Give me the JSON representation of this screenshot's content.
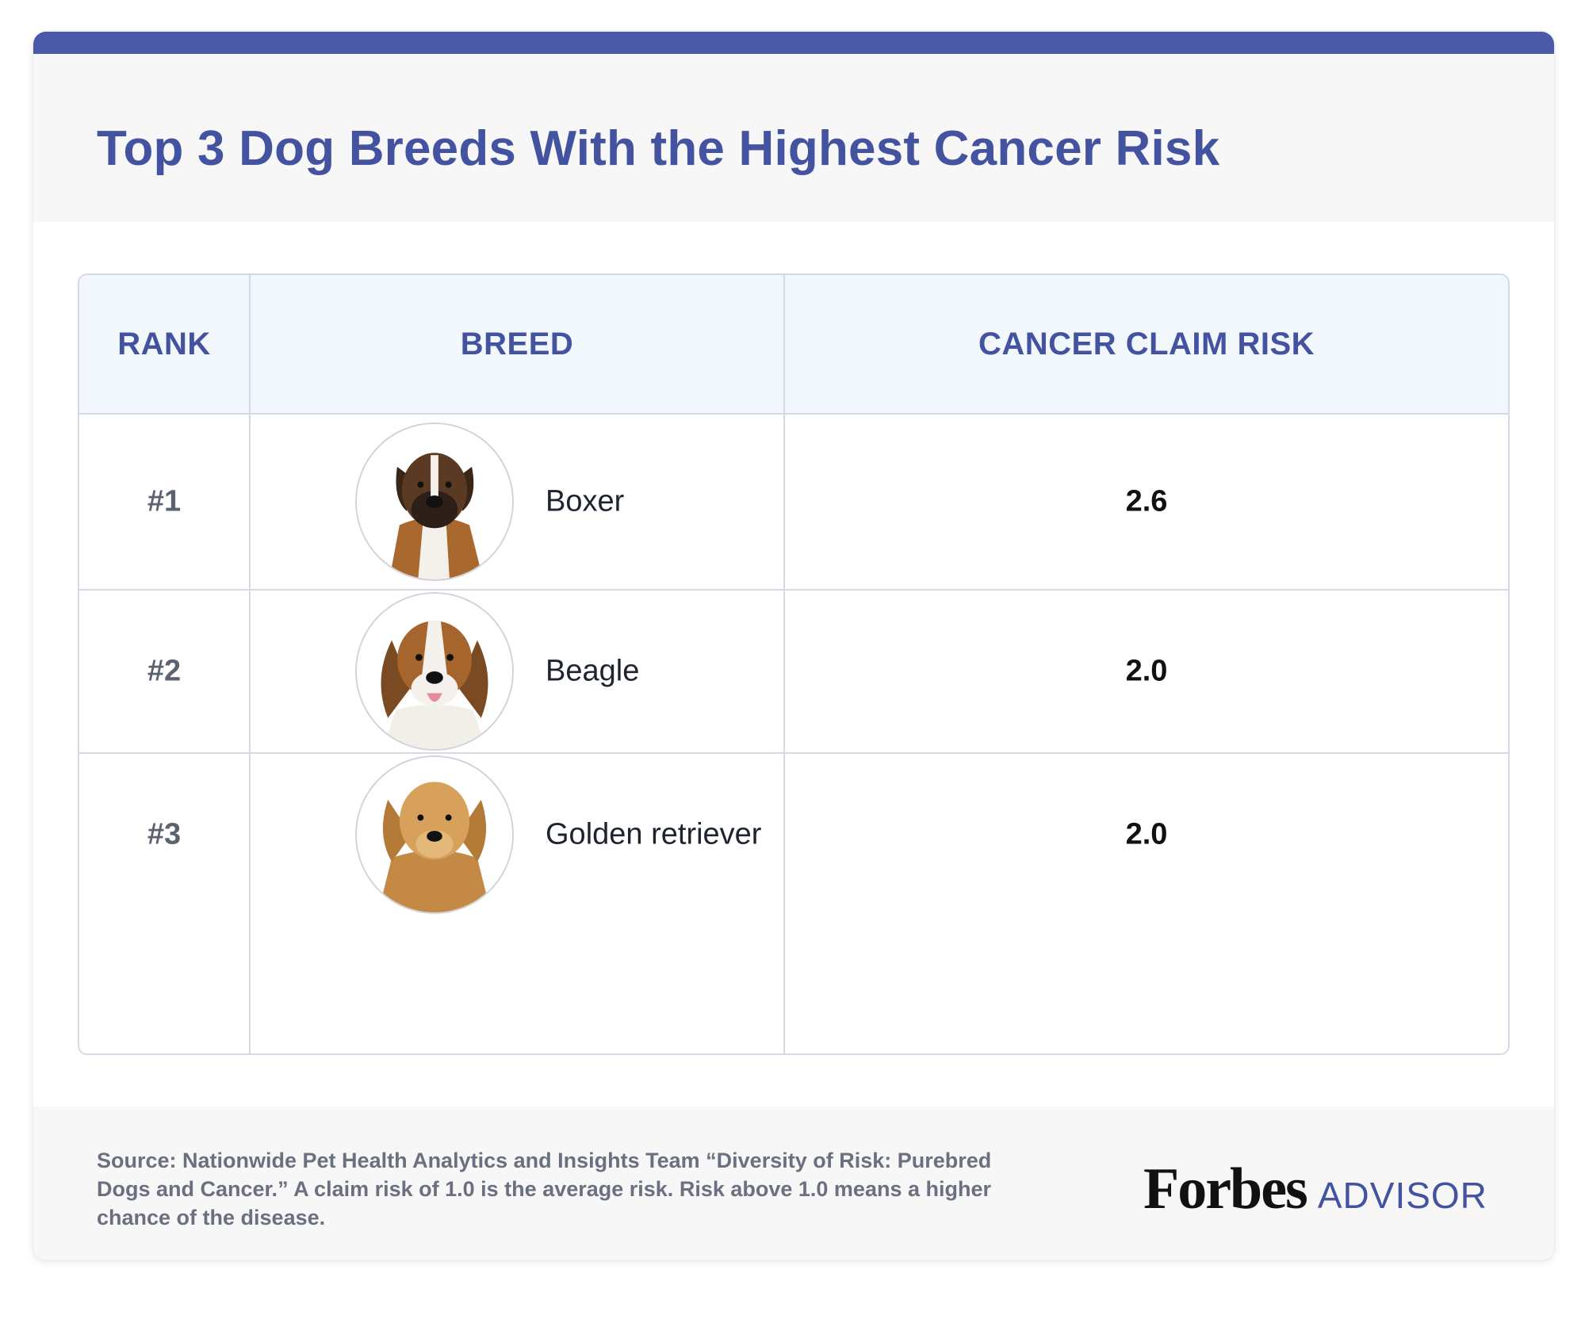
{
  "title": "Top 3 Dog Breeds With the Highest Cancer Risk",
  "colors": {
    "accent": "#4a5aa8",
    "title": "#4453a0",
    "header_bg": "#f2f6fd",
    "border": "#d4dae5",
    "panel_bg": "#f7f7f7"
  },
  "chart_data": {
    "type": "table",
    "title": "Top 3 Dog Breeds With the Highest Cancer Risk",
    "columns": [
      "RANK",
      "BREED",
      "CANCER CLAIM RISK"
    ],
    "rows": [
      {
        "rank": "#1",
        "breed": "Boxer",
        "risk": "2.6",
        "photo_icon": "boxer-dog-photo"
      },
      {
        "rank": "#2",
        "breed": "Beagle",
        "risk": "2.0",
        "photo_icon": "beagle-dog-photo"
      },
      {
        "rank": "#3",
        "breed": "Golden retriever",
        "risk": "2.0",
        "photo_icon": "golden-retriever-dog-photo"
      }
    ]
  },
  "footer": {
    "source": "Source: Nationwide Pet Health Analytics and Insights Team “Diversity of Risk: Purebred Dogs and Cancer.” A claim risk of 1.0 is the average risk. Risk above 1.0 means a higher chance of the disease.",
    "logo_primary": "Forbes",
    "logo_secondary": "ADVISOR"
  }
}
